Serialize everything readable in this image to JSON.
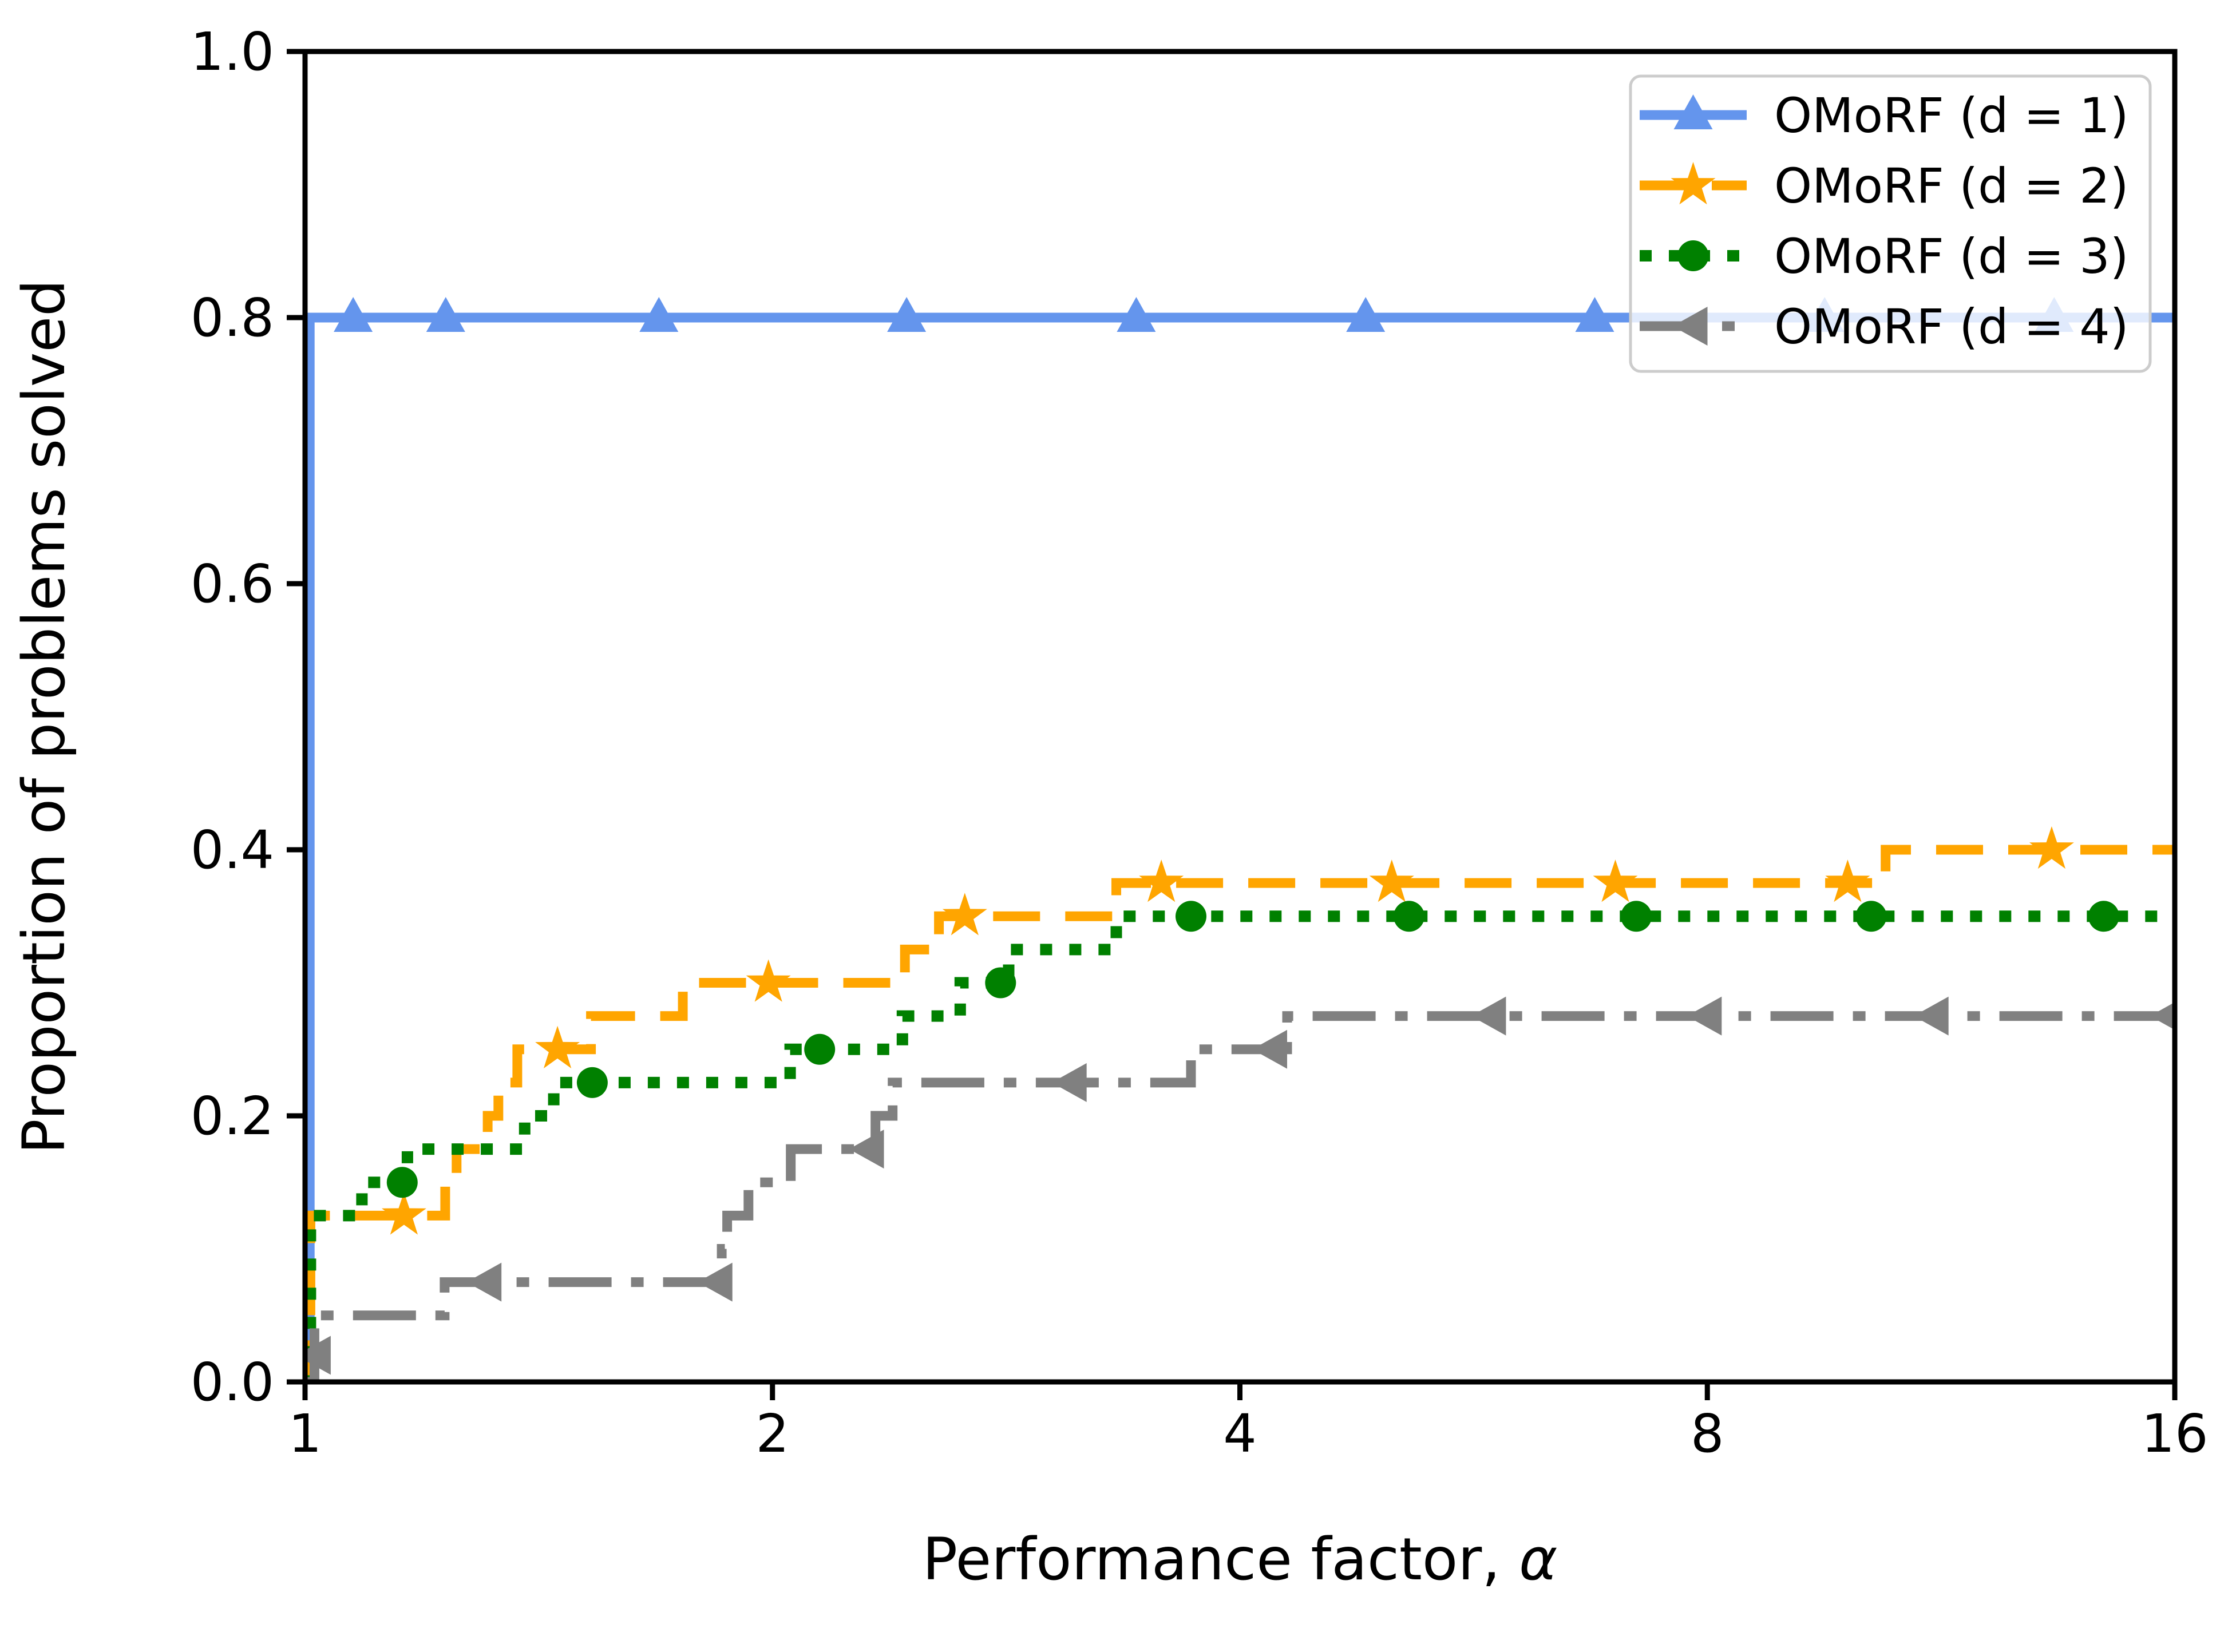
{
  "page": {
    "background": "#ffffff"
  },
  "chart_data": {
    "type": "line",
    "subtype": "performance-profile-step",
    "title": "",
    "xlabel": "Performance factor, α",
    "ylabel": "Proportion of problems solved",
    "xscale": "log2",
    "xlim": [
      1,
      16
    ],
    "ylim": [
      0.0,
      1.0
    ],
    "grid": false,
    "xticks": {
      "values": [
        1,
        2,
        4,
        8,
        16
      ],
      "labels": [
        "1",
        "2",
        "4",
        "8",
        "16"
      ]
    },
    "yticks": {
      "values": [
        0.0,
        0.2,
        0.4,
        0.6,
        0.8,
        1.0
      ],
      "labels": [
        "0.0",
        "0.2",
        "0.4",
        "0.6",
        "0.8",
        "1.0"
      ]
    },
    "legend": {
      "position": "upper right",
      "frame": true,
      "frame_color": "#cccccc",
      "frame_fill": "rgba(255,255,255,0.8)"
    },
    "axis_color": "#000000",
    "series": [
      {
        "name": "OMoRF (d = 1)",
        "color": "#6495ED",
        "linestyle": "solid",
        "marker": "triangle-up",
        "steps": [
          [
            1.0,
            0.0
          ],
          [
            1.007,
            0.8
          ],
          [
            16,
            0.8
          ]
        ],
        "markers": [
          [
            1.074,
            0.8
          ],
          [
            1.232,
            0.8
          ],
          [
            1.69,
            0.8
          ],
          [
            2.44,
            0.8
          ],
          [
            3.43,
            0.8
          ],
          [
            4.82,
            0.8
          ],
          [
            6.77,
            0.8
          ],
          [
            9.52,
            0.8
          ],
          [
            13.38,
            0.8
          ]
        ]
      },
      {
        "name": "OMoRF (d = 2)",
        "color": "#FFA500",
        "linestyle": "dashed",
        "marker": "star",
        "steps": [
          [
            1.0,
            0.0
          ],
          [
            1.008,
            0.125
          ],
          [
            1.231,
            0.15
          ],
          [
            1.252,
            0.175
          ],
          [
            1.311,
            0.2
          ],
          [
            1.332,
            0.225
          ],
          [
            1.37,
            0.25
          ],
          [
            1.528,
            0.275
          ],
          [
            1.751,
            0.3
          ],
          [
            2.434,
            0.325
          ],
          [
            2.56,
            0.35
          ],
          [
            3.33,
            0.375
          ],
          [
            10.42,
            0.4
          ],
          [
            16,
            0.4
          ]
        ],
        "markers": [
          [
            1.158,
            0.125
          ],
          [
            1.454,
            0.25
          ],
          [
            1.988,
            0.3
          ],
          [
            2.66,
            0.35
          ],
          [
            3.56,
            0.375
          ],
          [
            5.01,
            0.375
          ],
          [
            6.98,
            0.375
          ],
          [
            9.85,
            0.375
          ],
          [
            13.33,
            0.4
          ]
        ]
      },
      {
        "name": "OMoRF (d = 3)",
        "color": "#008000",
        "linestyle": "dotted",
        "marker": "circle",
        "steps": [
          [
            1.0,
            0.0
          ],
          [
            1.008,
            0.125
          ],
          [
            1.088,
            0.15
          ],
          [
            1.164,
            0.175
          ],
          [
            1.385,
            0.2
          ],
          [
            1.446,
            0.225
          ],
          [
            2.053,
            0.25
          ],
          [
            2.425,
            0.275
          ],
          [
            2.642,
            0.3
          ],
          [
            2.839,
            0.325
          ],
          [
            3.33,
            0.35
          ],
          [
            16,
            0.35
          ]
        ],
        "markers": [
          [
            1.155,
            0.15
          ],
          [
            1.531,
            0.225
          ],
          [
            2.145,
            0.25
          ],
          [
            2.805,
            0.3
          ],
          [
            3.72,
            0.35
          ],
          [
            5.14,
            0.35
          ],
          [
            7.2,
            0.35
          ],
          [
            10.2,
            0.35
          ],
          [
            14.4,
            0.35
          ]
        ]
      },
      {
        "name": "OMoRF (d = 4)",
        "color": "#808080",
        "linestyle": "dashdot",
        "marker": "triangle-left",
        "steps": [
          [
            1.0,
            0.0
          ],
          [
            1.014,
            0.05
          ],
          [
            1.23,
            0.075
          ],
          [
            1.855,
            0.1
          ],
          [
            1.87,
            0.125
          ],
          [
            1.93,
            0.15
          ],
          [
            2.055,
            0.175
          ],
          [
            2.33,
            0.2
          ],
          [
            2.39,
            0.225
          ],
          [
            3.72,
            0.25
          ],
          [
            4.29,
            0.275
          ],
          [
            16,
            0.275
          ]
        ],
        "markers": [
          [
            1.017,
            0.02
          ],
          [
            1.31,
            0.075
          ],
          [
            1.845,
            0.075
          ],
          [
            2.31,
            0.175
          ],
          [
            3.12,
            0.225
          ],
          [
            4.2,
            0.25
          ],
          [
            5.81,
            0.275
          ],
          [
            8.0,
            0.275
          ],
          [
            11.2,
            0.275
          ],
          [
            15.9,
            0.275
          ]
        ]
      }
    ]
  }
}
